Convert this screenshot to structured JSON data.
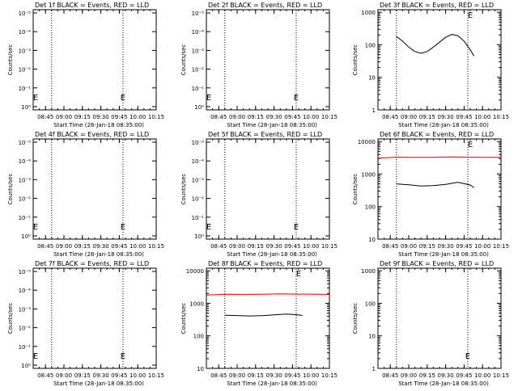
{
  "colors": {
    "events": "#000000",
    "lld": "#e00000",
    "background": "#ffffff"
  },
  "chart_data": [
    {
      "type": "line",
      "title": "Det 1f BLACK = Events, RED = LLD",
      "xlabel": "Start Time (28-Jan-18 08:35:00)",
      "ylabel": "Counts/sec",
      "x_ticks": [
        "08:45",
        "09:00",
        "09:15",
        "09:30",
        "09:45",
        "10:00",
        "10:15"
      ],
      "y_scale": "log",
      "y_ticks": [
        "10⁰",
        "10⁻¹",
        "10⁻²",
        "10⁻³",
        "10⁻⁴",
        "10⁻⁵"
      ],
      "dashed_markers_at": [
        "08:50",
        "09:48"
      ],
      "annotations": [
        {
          "text": "E",
          "at": "08:37"
        },
        {
          "text": "E",
          "at": "09:48"
        }
      ],
      "series": []
    },
    {
      "type": "line",
      "title": "Det 2f BLACK = Events, RED = LLD",
      "xlabel": "Start Time (28-Jan-18 08:35:00)",
      "ylabel": "Counts/sec",
      "x_ticks": [
        "08:45",
        "09:00",
        "09:15",
        "09:30",
        "09:45",
        "10:00",
        "10:15"
      ],
      "y_scale": "log",
      "y_ticks": [
        "10⁰",
        "10⁻¹",
        "10⁻²",
        "10⁻³",
        "10⁻⁴",
        "10⁻⁵"
      ],
      "dashed_markers_at": [
        "08:50",
        "09:48"
      ],
      "annotations": [
        {
          "text": "E",
          "at": "08:37"
        },
        {
          "text": "E",
          "at": "09:48"
        }
      ],
      "series": []
    },
    {
      "type": "line",
      "title": "Det 3f BLACK = Events, RED = LLD",
      "xlabel": "Start Time (28-Jan-18 08:35:00)",
      "ylabel": "Counts/sec",
      "x_ticks": [
        "08:45",
        "09:00",
        "09:15",
        "09:30",
        "09:45",
        "10:00",
        "10:15"
      ],
      "y_scale": "log",
      "y_ticks": [
        "1",
        "10",
        "100",
        "1000"
      ],
      "ylim": [
        1,
        1200
      ],
      "dashed_markers_at": [
        "08:50",
        "09:48"
      ],
      "annotations": [
        {
          "text": "E",
          "at": "09:50"
        }
      ],
      "series": [
        {
          "color": "events",
          "x": [
            "08:50",
            "08:55",
            "09:00",
            "09:05",
            "09:10",
            "09:15",
            "09:20",
            "09:25",
            "09:30",
            "09:35",
            "09:40",
            "09:45",
            "09:50",
            "09:53"
          ],
          "y": [
            180,
            130,
            85,
            62,
            55,
            62,
            85,
            120,
            170,
            210,
            190,
            130,
            70,
            45
          ]
        }
      ]
    },
    {
      "type": "line",
      "title": "Det 4f BLACK = Events, RED = LLD",
      "xlabel": "Start Time (28-Jan-18 08:35:00)",
      "ylabel": "Counts/sec",
      "x_ticks": [
        "08:45",
        "09:00",
        "09:15",
        "09:30",
        "09:45",
        "10:00",
        "10:15"
      ],
      "y_scale": "log",
      "y_ticks": [
        "10⁰",
        "10⁻¹",
        "10⁻²",
        "10⁻³",
        "10⁻⁴",
        "10⁻⁵"
      ],
      "dashed_markers_at": [
        "08:50",
        "09:48"
      ],
      "annotations": [
        {
          "text": "E",
          "at": "08:37"
        },
        {
          "text": "E",
          "at": "09:48"
        }
      ],
      "series": []
    },
    {
      "type": "line",
      "title": "Det 5f BLACK = Events, RED = LLD",
      "xlabel": "Start Time (28-Jan-18 08:35:00)",
      "ylabel": "Counts/sec",
      "x_ticks": [
        "08:45",
        "09:00",
        "09:15",
        "09:30",
        "09:45",
        "10:00",
        "10:15"
      ],
      "y_scale": "log",
      "y_ticks": [
        "10⁰",
        "10⁻¹",
        "10⁻²",
        "10⁻³",
        "10⁻⁴",
        "10⁻⁵"
      ],
      "dashed_markers_at": [
        "08:50",
        "09:48"
      ],
      "annotations": [
        {
          "text": "E",
          "at": "08:37"
        },
        {
          "text": "E",
          "at": "09:48"
        }
      ],
      "series": []
    },
    {
      "type": "line",
      "title": "Det 6f BLACK = Events, RED = LLD",
      "xlabel": "Start Time (28-Jan-18 08:35:00)",
      "ylabel": "Counts/sec",
      "x_ticks": [
        "08:45",
        "09:00",
        "09:15",
        "09:30",
        "09:45",
        "10:00",
        "10:15"
      ],
      "y_scale": "log",
      "y_ticks": [
        "10",
        "100",
        "1000",
        "10000"
      ],
      "ylim": [
        10,
        12000
      ],
      "dashed_markers_at": [
        "08:50",
        "09:48"
      ],
      "annotations": [
        {
          "text": "E",
          "at": "09:50"
        }
      ],
      "series": [
        {
          "color": "lld",
          "x": [
            "08:35",
            "08:50",
            "09:05",
            "09:20",
            "09:35",
            "09:50",
            "10:05",
            "10:15"
          ],
          "y": [
            3100,
            3300,
            3250,
            3250,
            3350,
            3300,
            3280,
            3250
          ]
        },
        {
          "color": "events",
          "x": [
            "08:50",
            "09:00",
            "09:10",
            "09:20",
            "09:30",
            "09:40",
            "09:50",
            "09:53"
          ],
          "y": [
            500,
            470,
            430,
            440,
            480,
            560,
            460,
            380
          ]
        }
      ]
    },
    {
      "type": "line",
      "title": "Det 7f BLACK = Events, RED = LLD",
      "xlabel": "Start Time (28-Jan-18 08:35:00)",
      "ylabel": "Counts/sec",
      "x_ticks": [
        "08:45",
        "09:00",
        "09:15",
        "09:30",
        "09:45",
        "10:00",
        "10:15"
      ],
      "y_scale": "log",
      "y_ticks": [
        "10⁰",
        "10⁻¹",
        "10⁻²",
        "10⁻³",
        "10⁻⁴",
        "10⁻⁵"
      ],
      "dashed_markers_at": [
        "08:50",
        "09:48"
      ],
      "annotations": [
        {
          "text": "E",
          "at": "08:37"
        },
        {
          "text": "E",
          "at": "09:48"
        }
      ],
      "series": []
    },
    {
      "type": "line",
      "title": "Det 8f BLACK = Events, RED = LLD",
      "xlabel": "Start Time (28-Jan-18 08:35:00)",
      "ylabel": "Counts/sec",
      "x_ticks": [
        "08:45",
        "09:00",
        "09:15",
        "09:30",
        "09:45",
        "10:00",
        "10:15"
      ],
      "y_scale": "log",
      "y_ticks": [
        "10",
        "100",
        "1000",
        "10000"
      ],
      "ylim": [
        10,
        12000
      ],
      "dashed_markers_at": [
        "08:50",
        "09:48"
      ],
      "annotations": [
        {
          "text": "E",
          "at": "09:50"
        }
      ],
      "series": [
        {
          "color": "lld",
          "x": [
            "08:35",
            "08:50",
            "09:05",
            "09:20",
            "09:35",
            "09:50",
            "10:05",
            "10:15"
          ],
          "y": [
            1800,
            1900,
            1880,
            1900,
            1950,
            1920,
            1900,
            1880
          ]
        },
        {
          "color": "events",
          "x": [
            "08:50",
            "09:00",
            "09:10",
            "09:20",
            "09:30",
            "09:40",
            "09:50",
            "09:53"
          ],
          "y": [
            430,
            420,
            410,
            415,
            440,
            470,
            440,
            420
          ]
        }
      ]
    },
    {
      "type": "line",
      "title": "Det 9f BLACK = Events, RED = LLD",
      "xlabel": "Start Time (28-Jan-18 08:35:00)",
      "ylabel": "Counts/sec",
      "x_ticks": [
        "08:45",
        "09:00",
        "09:15",
        "09:30",
        "09:45",
        "10:00",
        "10:15"
      ],
      "y_scale": "log",
      "y_ticks": [
        "1",
        "10",
        "100",
        "1000"
      ],
      "ylim": [
        1,
        1200
      ],
      "dashed_markers_at": [
        "08:50",
        "09:48"
      ],
      "annotations": [
        {
          "text": "E",
          "at": "09:48"
        }
      ],
      "series": []
    }
  ]
}
